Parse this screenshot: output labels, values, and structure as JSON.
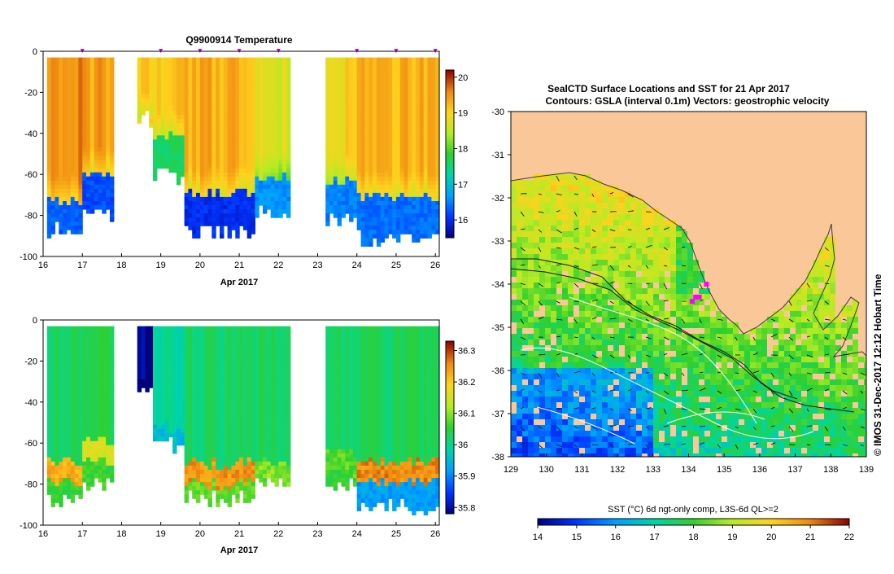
{
  "chart_data": [
    {
      "type": "heatmap",
      "title": "Q9900914  Temperature",
      "xlabel": "Apr 2017",
      "ylabel": "",
      "x_ticks": [
        "16",
        "17",
        "18",
        "19",
        "20",
        "21",
        "22",
        "23",
        "24",
        "25",
        "26"
      ],
      "xlim": [
        16,
        26.1
      ],
      "y_ticks": [
        "0",
        "-20",
        "-40",
        "-60",
        "-80",
        "-100"
      ],
      "ylim": [
        -100,
        0
      ],
      "profile_markers_day": [
        17.0,
        19.0,
        20.0,
        21.0,
        22.0,
        24.0,
        25.0,
        26.0
      ],
      "colorbar": {
        "min": 15.5,
        "max": 20.2,
        "ticks": [
          "16",
          "17",
          "18",
          "19",
          "20"
        ]
      },
      "profiles": [
        {
          "start": 16.1,
          "end": 17.0,
          "mixed_temp": 19.5,
          "thermo_depth": -72,
          "deep_temp": 16.3,
          "bottom": -86
        },
        {
          "start": 17.0,
          "end": 17.8,
          "mixed_temp": 19.4,
          "thermo_depth": -60,
          "deep_temp": 16.2,
          "bottom": -79
        },
        {
          "start": 18.4,
          "end": 18.8,
          "mixed_temp": 19.0,
          "thermo_depth": -32,
          "deep_temp": 19.0,
          "bottom": -32
        },
        {
          "start": 18.8,
          "end": 19.6,
          "mixed_temp": 19.1,
          "thermo_depth": -40,
          "deep_temp": 17.6,
          "bottom": -60
        },
        {
          "start": 19.6,
          "end": 21.4,
          "mixed_temp": 19.3,
          "thermo_depth": -68,
          "deep_temp": 16.0,
          "bottom": -87
        },
        {
          "start": 21.4,
          "end": 22.3,
          "mixed_temp": 18.7,
          "thermo_depth": -60,
          "deep_temp": 16.6,
          "bottom": -78
        },
        {
          "start": 23.2,
          "end": 24.0,
          "mixed_temp": 19.0,
          "thermo_depth": -62,
          "deep_temp": 16.5,
          "bottom": -80
        },
        {
          "start": 24.0,
          "end": 26.1,
          "mixed_temp": 19.3,
          "thermo_depth": -70,
          "deep_temp": 16.4,
          "bottom": -90
        }
      ]
    },
    {
      "type": "heatmap",
      "title": "",
      "xlabel": "Apr 2017",
      "ylabel": "",
      "x_ticks": [
        "16",
        "17",
        "18",
        "19",
        "20",
        "21",
        "22",
        "23",
        "24",
        "25",
        "26"
      ],
      "xlim": [
        16,
        26.1
      ],
      "y_ticks": [
        "0",
        "-20",
        "-40",
        "-60",
        "-80",
        "-100"
      ],
      "ylim": [
        -100,
        0
      ],
      "colorbar": {
        "min": 35.78,
        "max": 36.33,
        "ticks": [
          "35.8",
          "35.9",
          "36",
          "36.1",
          "36.2",
          "36.3"
        ]
      },
      "profiles": [
        {
          "start": 16.1,
          "end": 17.0,
          "mixed_sal": 36.03,
          "halo_depth": -72,
          "peak_sal": 36.25,
          "deep_sal": 36.05,
          "bottom": -86
        },
        {
          "start": 17.0,
          "end": 17.8,
          "mixed_sal": 36.04,
          "halo_depth": -62,
          "peak_sal": 36.18,
          "deep_sal": 36.06,
          "bottom": -79
        },
        {
          "start": 18.4,
          "end": 18.8,
          "mixed_sal": 35.79,
          "halo_depth": -32,
          "peak_sal": 35.79,
          "deep_sal": 35.79,
          "bottom": -32
        },
        {
          "start": 18.8,
          "end": 19.6,
          "mixed_sal": 35.99,
          "halo_depth": -55,
          "peak_sal": 35.98,
          "deep_sal": 35.95,
          "bottom": -60
        },
        {
          "start": 19.6,
          "end": 21.4,
          "mixed_sal": 36.02,
          "halo_depth": -73,
          "peak_sal": 36.27,
          "deep_sal": 36.08,
          "bottom": -86
        },
        {
          "start": 21.4,
          "end": 22.3,
          "mixed_sal": 36.03,
          "halo_depth": -72,
          "peak_sal": 36.12,
          "deep_sal": 36.06,
          "bottom": -78
        },
        {
          "start": 23.2,
          "end": 24.0,
          "mixed_sal": 36.02,
          "halo_depth": -68,
          "peak_sal": 36.1,
          "deep_sal": 36.05,
          "bottom": -80
        },
        {
          "start": 24.0,
          "end": 26.1,
          "mixed_sal": 36.03,
          "halo_depth": -72,
          "peak_sal": 36.28,
          "deep_sal": 35.92,
          "bottom": -90
        }
      ]
    },
    {
      "type": "heatmap",
      "title_line1": "SealCTD Surface Locations and SST for 21 Apr 2017",
      "title_line2": "Contours: GSLA (interval 0.1m)  Vectors: geostrophic velocity",
      "xlabel": "",
      "ylabel": "",
      "x_ticks": [
        "129",
        "130",
        "131",
        "132",
        "133",
        "134",
        "135",
        "136",
        "137",
        "138",
        "139"
      ],
      "xlim": [
        129,
        139
      ],
      "y_ticks": [
        "-30",
        "-31",
        "-32",
        "-33",
        "-34",
        "-35",
        "-36",
        "-37",
        "-38"
      ],
      "ylim": [
        -38,
        -30
      ],
      "colorbar_label": "SST (°C) 6d ngt-only comp, L3S-6d QL>=2",
      "colorbar": {
        "min": 14,
        "max": 22,
        "ticks": [
          "14",
          "15",
          "16",
          "17",
          "18",
          "19",
          "20",
          "21",
          "22"
        ]
      },
      "seal_locations": [
        [
          134.3,
          -34.3
        ],
        [
          134.5,
          -34.0
        ],
        [
          134.1,
          -34.4
        ],
        [
          134.2,
          -34.3
        ]
      ],
      "side_credit": "© IMOS 31-Dec-2017 12:12 Hobart Time"
    }
  ]
}
